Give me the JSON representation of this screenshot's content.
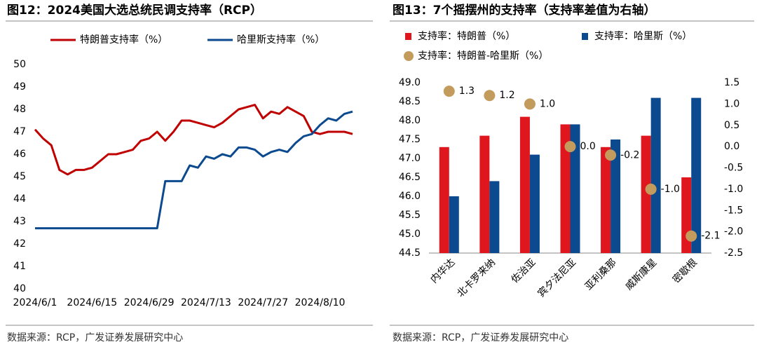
{
  "chart_data": [
    {
      "type": "line",
      "title": "图12：2024美国大选总统民调支持率（RCP）",
      "source": "数据来源：RCP，广发证券发展研究中心",
      "x": [
        "2024/6/1",
        "2024/6/3",
        "2024/6/5",
        "2024/6/7",
        "2024/6/9",
        "2024/6/11",
        "2024/6/13",
        "2024/6/15",
        "2024/6/17",
        "2024/6/19",
        "2024/6/21",
        "2024/6/23",
        "2024/6/25",
        "2024/6/27",
        "2024/6/29",
        "2024/7/1",
        "2024/7/3",
        "2024/7/5",
        "2024/7/7",
        "2024/7/9",
        "2024/7/11",
        "2024/7/13",
        "2024/7/15",
        "2024/7/17",
        "2024/7/19",
        "2024/7/21",
        "2024/7/23",
        "2024/7/25",
        "2024/7/27",
        "2024/7/29",
        "2024/7/31",
        "2024/8/2",
        "2024/8/4",
        "2024/8/6",
        "2024/8/8",
        "2024/8/10",
        "2024/8/12",
        "2024/8/14",
        "2024/8/16",
        "2024/8/18"
      ],
      "series": [
        {
          "name": "特朗普支持率（%）",
          "color": "#c00000",
          "values": [
            47.1,
            46.7,
            46.4,
            45.3,
            45.1,
            45.3,
            45.3,
            45.4,
            45.7,
            46.0,
            46.0,
            46.1,
            46.2,
            46.6,
            46.7,
            47.0,
            46.6,
            47.0,
            47.5,
            47.5,
            47.4,
            47.3,
            47.2,
            47.4,
            47.7,
            48.0,
            48.1,
            48.2,
            47.6,
            47.9,
            47.8,
            48.1,
            47.9,
            47.7,
            47.0,
            46.9,
            47.0,
            47.0,
            47.0,
            46.9
          ]
        },
        {
          "name": "哈里斯支持率（%）",
          "color": "#0b4a8f",
          "values": [
            42.7,
            42.7,
            42.7,
            42.7,
            42.7,
            42.7,
            42.7,
            42.7,
            42.7,
            42.7,
            42.7,
            42.7,
            42.7,
            42.7,
            42.7,
            42.7,
            44.8,
            44.8,
            44.8,
            45.5,
            45.4,
            45.9,
            45.8,
            46.0,
            45.9,
            46.3,
            46.3,
            46.2,
            45.9,
            46.1,
            46.2,
            46.1,
            46.5,
            46.8,
            46.9,
            47.3,
            47.6,
            47.5,
            47.8,
            47.9
          ]
        }
      ],
      "xlim": [
        "2024/6/1",
        "2024/8/18"
      ],
      "xticks": [
        "2024/6/1",
        "2024/6/15",
        "2024/6/29",
        "2024/7/13",
        "2024/7/27",
        "2024/8/10"
      ],
      "ylim": [
        40,
        50
      ],
      "yticks": [
        40,
        41,
        42,
        43,
        44,
        45,
        46,
        47,
        48,
        49,
        50
      ],
      "grid": false
    },
    {
      "type": "bar",
      "title": "图13：7个摇摆州的支持率（支持率差值为右轴）",
      "source": "数据来源：RCP，广发证券发展研究中心",
      "categories": [
        "内华达",
        "北卡罗来纳",
        "佐治亚",
        "宾夕法尼亚",
        "亚利桑那",
        "威斯康星",
        "密歇根"
      ],
      "series": [
        {
          "name": "支持率：特朗普（%）",
          "color": "#e0161e",
          "values": [
            47.3,
            47.6,
            48.1,
            47.9,
            47.3,
            47.6,
            46.5
          ]
        },
        {
          "name": "支持率：哈里斯（%）",
          "color": "#0b4a8f",
          "values": [
            46.0,
            46.4,
            47.1,
            47.9,
            47.5,
            48.6,
            48.6
          ]
        },
        {
          "name": "支持率：特朗普-哈里斯（%）",
          "color": "#c39b5c",
          "type": "scatter",
          "axis": "y2",
          "values": [
            1.3,
            1.2,
            1.0,
            0.0,
            -0.2,
            -1.0,
            -2.1
          ],
          "value_labels": [
            "1.3",
            "1.2",
            "1.0",
            "0.0",
            "-0.2",
            "-1.0",
            "-2.1"
          ]
        }
      ],
      "ylim": [
        44.5,
        49.0
      ],
      "yticks": [
        44.5,
        {
          "value": 45.0,
          "label": "45.0"
        },
        45.5,
        {
          "value": 46.0,
          "label": "46.0"
        },
        46.5,
        {
          "value": 47.0,
          "label": "47.0"
        },
        47.5,
        {
          "value": 48.0,
          "label": "48.0"
        },
        48.5,
        {
          "value": 49.0,
          "label": "49.0"
        }
      ],
      "y2lim": [
        -2.5,
        1.5
      ],
      "y2ticks": [
        -2.5,
        {
          "value": -2.0,
          "label": "-2.0"
        },
        -1.5,
        {
          "value": -1.0,
          "label": "-1.0"
        },
        -0.5,
        {
          "value": 0.0,
          "label": "0.0"
        },
        0.5,
        {
          "value": 1.0,
          "label": "1.0"
        },
        1.5
      ],
      "grid": false
    }
  ]
}
